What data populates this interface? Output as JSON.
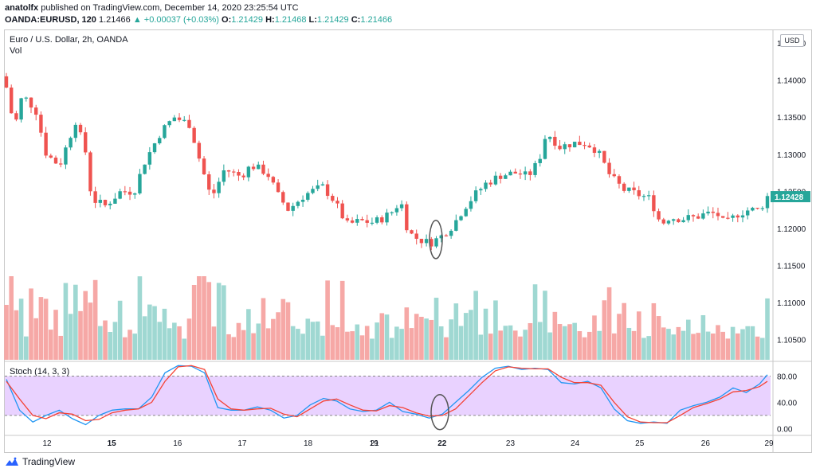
{
  "header": {
    "author": "anatolfx",
    "published_text": "published on TradingView.com, December 14, 2020 23:25:54 UTC",
    "symbol": "OANDA:EURUSD, 120",
    "last": "1.21466",
    "change_arrow": "▲",
    "change": "+0.00037 (+0.03%)",
    "o_label": "O:",
    "o": "1.21429",
    "h_label": "H:",
    "h": "1.21468",
    "l_label": "L:",
    "l": "1.21429",
    "c_label": "C:",
    "c": "1.21466"
  },
  "chart": {
    "title": "Euro / U.S. Dollar, 2h, OANDA",
    "vol_label": "Vol",
    "currency_button": "USD",
    "stoch_label": "Stoch (14, 3, 3)"
  },
  "footer": {
    "brand": "TradingView",
    "logo_icon": "tradingview-logo-icon"
  },
  "colors": {
    "up": "#26a69a",
    "down": "#ef5350",
    "vol_up": "#9fd8d2",
    "vol_down": "#f6a8a6",
    "k_line": "#2196f3",
    "d_line": "#f44336",
    "stoch_band": "#e9d2ff",
    "last_tag": "#26a69a"
  },
  "chart_data": [
    {
      "type": "candlestick",
      "title": "Euro / U.S. Dollar, 2h, OANDA",
      "x_ticks": [
        "12",
        "15",
        "16",
        "17",
        "18",
        "19",
        "21",
        "22",
        "23",
        "24",
        "25",
        "26",
        "29"
      ],
      "y_ticks": [
        "1.14500",
        "1.14000",
        "1.13500",
        "1.13000",
        "1.12500",
        "1.12000",
        "1.11500",
        "1.11000",
        "1.10500"
      ],
      "ylim": [
        1.1025,
        1.1465
      ],
      "last_price_label": "1.12428",
      "last_price": 1.12428,
      "annotations": [
        {
          "shape": "ellipse",
          "near_x": "22",
          "at_price": 1.1185
        }
      ],
      "close_path": [
        {
          "t": 0.0,
          "p": 1.139
        },
        {
          "t": 0.3,
          "p": 1.1335
        },
        {
          "t": 0.6,
          "p": 1.138
        },
        {
          "t": 1.1,
          "p": 1.136
        },
        {
          "t": 1.5,
          "p": 1.13
        },
        {
          "t": 2.0,
          "p": 1.1285
        },
        {
          "t": 2.6,
          "p": 1.1345
        },
        {
          "t": 3.0,
          "p": 1.13
        },
        {
          "t": 3.2,
          "p": 1.124
        },
        {
          "t": 3.7,
          "p": 1.123
        },
        {
          "t": 4.3,
          "p": 1.125
        },
        {
          "t": 4.8,
          "p": 1.125
        },
        {
          "t": 5.2,
          "p": 1.129
        },
        {
          "t": 5.8,
          "p": 1.133
        },
        {
          "t": 6.3,
          "p": 1.135
        },
        {
          "t": 6.9,
          "p": 1.134
        },
        {
          "t": 7.2,
          "p": 1.13
        },
        {
          "t": 7.7,
          "p": 1.124
        },
        {
          "t": 8.2,
          "p": 1.128
        },
        {
          "t": 8.8,
          "p": 1.127
        },
        {
          "t": 9.2,
          "p": 1.1285
        },
        {
          "t": 9.8,
          "p": 1.1275
        },
        {
          "t": 10.2,
          "p": 1.1245
        },
        {
          "t": 10.6,
          "p": 1.1225
        },
        {
          "t": 11.2,
          "p": 1.1245
        },
        {
          "t": 11.6,
          "p": 1.1252
        },
        {
          "t": 11.9,
          "p": 1.1256
        },
        {
          "t": 12.3,
          "p": 1.1238
        },
        {
          "t": 12.8,
          "p": 1.1205
        },
        {
          "t": 13.3,
          "p": 1.121
        },
        {
          "t": 13.8,
          "p": 1.1208
        },
        {
          "t": 14.2,
          "p": 1.1215
        },
        {
          "t": 14.6,
          "p": 1.1225
        },
        {
          "t": 14.8,
          "p": 1.124
        },
        {
          "t": 15.1,
          "p": 1.1195
        },
        {
          "t": 15.4,
          "p": 1.1187
        },
        {
          "t": 15.9,
          "p": 1.118
        },
        {
          "t": 16.3,
          "p": 1.1188
        },
        {
          "t": 16.8,
          "p": 1.1205
        },
        {
          "t": 17.2,
          "p": 1.1228
        },
        {
          "t": 17.6,
          "p": 1.1245
        },
        {
          "t": 18.0,
          "p": 1.126
        },
        {
          "t": 18.6,
          "p": 1.1272
        },
        {
          "t": 19.2,
          "p": 1.1275
        },
        {
          "t": 19.6,
          "p": 1.127
        },
        {
          "t": 20.0,
          "p": 1.129
        },
        {
          "t": 20.3,
          "p": 1.133
        },
        {
          "t": 20.8,
          "p": 1.131
        },
        {
          "t": 21.3,
          "p": 1.1315
        },
        {
          "t": 21.8,
          "p": 1.1315
        },
        {
          "t": 22.2,
          "p": 1.1305
        },
        {
          "t": 22.7,
          "p": 1.127
        },
        {
          "t": 23.2,
          "p": 1.1252
        },
        {
          "t": 23.8,
          "p": 1.1245
        },
        {
          "t": 24.2,
          "p": 1.124
        },
        {
          "t": 24.6,
          "p": 1.1205
        },
        {
          "t": 24.9,
          "p": 1.1215
        },
        {
          "t": 25.4,
          "p": 1.1213
        },
        {
          "t": 25.9,
          "p": 1.1215
        },
        {
          "t": 26.3,
          "p": 1.122
        },
        {
          "t": 26.7,
          "p": 1.122
        },
        {
          "t": 27.0,
          "p": 1.1205
        },
        {
          "t": 27.5,
          "p": 1.122
        },
        {
          "t": 27.9,
          "p": 1.1225
        },
        {
          "t": 28.3,
          "p": 1.1225
        },
        {
          "t": 28.6,
          "p": 1.1243
        }
      ]
    },
    {
      "type": "bar",
      "title": "Vol",
      "note": "volume bars colored by candle direction; axis unlabeled"
    },
    {
      "type": "line",
      "title": "Stoch (14, 3, 3)",
      "y_ticks": [
        "80.00",
        "40.00",
        "0.00"
      ],
      "ylim": [
        -8,
        100
      ],
      "bands": [
        20,
        80
      ],
      "series": [
        {
          "key": "k",
          "points": [
            [
              0.0,
              75
            ],
            [
              0.5,
              28
            ],
            [
              1.0,
              10
            ],
            [
              1.5,
              20
            ],
            [
              2.0,
              28
            ],
            [
              2.5,
              15
            ],
            [
              3.0,
              6
            ],
            [
              3.5,
              20
            ],
            [
              4.0,
              28
            ],
            [
              4.5,
              30
            ],
            [
              5.0,
              30
            ],
            [
              5.5,
              48
            ],
            [
              6.0,
              85
            ],
            [
              6.5,
              96
            ],
            [
              7.0,
              95
            ],
            [
              7.5,
              85
            ],
            [
              8.0,
              32
            ],
            [
              8.5,
              28
            ],
            [
              9.0,
              28
            ],
            [
              9.5,
              33
            ],
            [
              10.0,
              28
            ],
            [
              10.5,
              16
            ],
            [
              11.0,
              20
            ],
            [
              11.5,
              36
            ],
            [
              12.0,
              46
            ],
            [
              12.5,
              42
            ],
            [
              13.0,
              30
            ],
            [
              13.5,
              26
            ],
            [
              14.0,
              28
            ],
            [
              14.5,
              40
            ],
            [
              15.0,
              26
            ],
            [
              15.5,
              22
            ],
            [
              16.0,
              16
            ],
            [
              16.5,
              22
            ],
            [
              17.0,
              40
            ],
            [
              17.5,
              58
            ],
            [
              18.0,
              78
            ],
            [
              18.5,
              92
            ],
            [
              19.0,
              95
            ],
            [
              19.5,
              90
            ],
            [
              20.0,
              92
            ],
            [
              20.5,
              90
            ],
            [
              21.0,
              70
            ],
            [
              21.5,
              68
            ],
            [
              22.0,
              72
            ],
            [
              22.5,
              62
            ],
            [
              23.0,
              30
            ],
            [
              23.5,
              12
            ],
            [
              24.0,
              8
            ],
            [
              24.5,
              10
            ],
            [
              25.0,
              8
            ],
            [
              25.5,
              28
            ],
            [
              26.0,
              35
            ],
            [
              26.5,
              40
            ],
            [
              27.0,
              48
            ],
            [
              27.5,
              62
            ],
            [
              28.0,
              55
            ],
            [
              28.5,
              68
            ],
            [
              28.8,
              82
            ]
          ]
        },
        {
          "key": "d",
          "points": [
            [
              0.0,
              72
            ],
            [
              0.5,
              45
            ],
            [
              1.0,
              20
            ],
            [
              1.5,
              15
            ],
            [
              2.0,
              24
            ],
            [
              2.5,
              22
            ],
            [
              3.0,
              12
            ],
            [
              3.5,
              14
            ],
            [
              4.0,
              24
            ],
            [
              4.5,
              28
            ],
            [
              5.0,
              30
            ],
            [
              5.5,
              40
            ],
            [
              6.0,
              72
            ],
            [
              6.5,
              94
            ],
            [
              7.0,
              96
            ],
            [
              7.5,
              90
            ],
            [
              8.0,
              45
            ],
            [
              8.5,
              30
            ],
            [
              9.0,
              28
            ],
            [
              9.5,
              30
            ],
            [
              10.0,
              31
            ],
            [
              10.5,
              22
            ],
            [
              11.0,
              18
            ],
            [
              11.5,
              30
            ],
            [
              12.0,
              42
            ],
            [
              12.5,
              45
            ],
            [
              13.0,
              36
            ],
            [
              13.5,
              28
            ],
            [
              14.0,
              27
            ],
            [
              14.5,
              35
            ],
            [
              15.0,
              32
            ],
            [
              15.5,
              24
            ],
            [
              16.0,
              19
            ],
            [
              16.5,
              20
            ],
            [
              17.0,
              30
            ],
            [
              17.5,
              50
            ],
            [
              18.0,
              70
            ],
            [
              18.5,
              88
            ],
            [
              19.0,
              94
            ],
            [
              19.5,
              92
            ],
            [
              20.0,
              91
            ],
            [
              20.5,
              91
            ],
            [
              21.0,
              78
            ],
            [
              21.5,
              70
            ],
            [
              22.0,
              70
            ],
            [
              22.5,
              66
            ],
            [
              23.0,
              40
            ],
            [
              23.5,
              18
            ],
            [
              24.0,
              10
            ],
            [
              24.5,
              9
            ],
            [
              25.0,
              9
            ],
            [
              25.5,
              20
            ],
            [
              26.0,
              32
            ],
            [
              26.5,
              38
            ],
            [
              27.0,
              45
            ],
            [
              27.5,
              56
            ],
            [
              28.0,
              58
            ],
            [
              28.5,
              64
            ],
            [
              28.8,
              72
            ]
          ]
        }
      ],
      "annotations": [
        {
          "shape": "ellipse",
          "near_x": "22"
        }
      ]
    }
  ]
}
